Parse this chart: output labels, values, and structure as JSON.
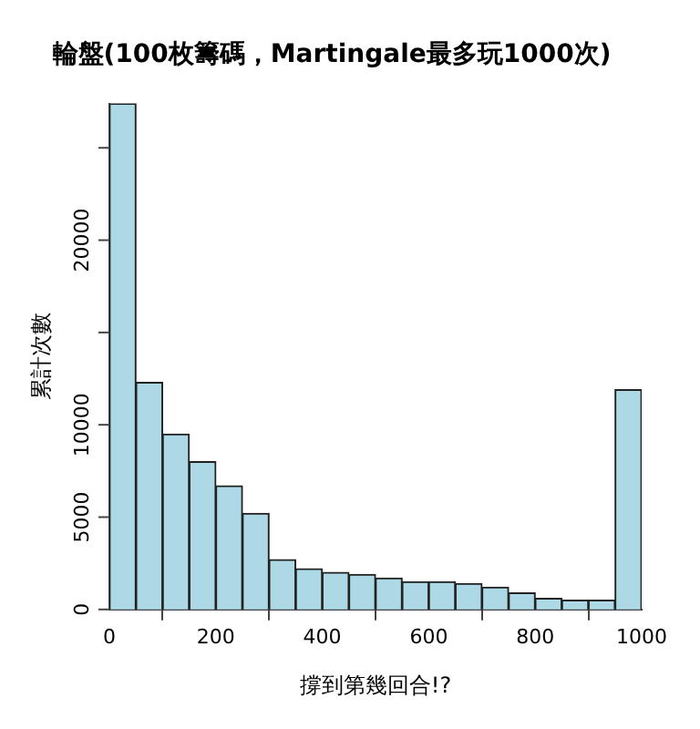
{
  "chart_data": {
    "type": "histogram",
    "title": "輪盤(100枚籌碼，Martingale最多玩1000次)",
    "xlabel": "撐到第幾回合!?",
    "ylabel": "累計次數",
    "bins": [
      0,
      50,
      100,
      150,
      200,
      250,
      300,
      350,
      400,
      450,
      500,
      550,
      600,
      650,
      700,
      750,
      800,
      850,
      900,
      950,
      1000
    ],
    "values": [
      27400,
      12300,
      9500,
      8000,
      6700,
      5200,
      2700,
      2200,
      2000,
      1900,
      1700,
      1500,
      1500,
      1400,
      1200,
      900,
      600,
      500,
      500,
      11900
    ],
    "color": "#add8e6",
    "xlim": [
      0,
      1000
    ],
    "xticks": [
      0,
      200,
      400,
      600,
      800,
      1000
    ],
    "ylim": [
      0,
      27400
    ],
    "yticks": [
      0,
      5000,
      10000,
      {
        "value": 15000,
        "label": null
      },
      20000,
      {
        "value": 25000,
        "label": null
      }
    ],
    "grid": false
  }
}
